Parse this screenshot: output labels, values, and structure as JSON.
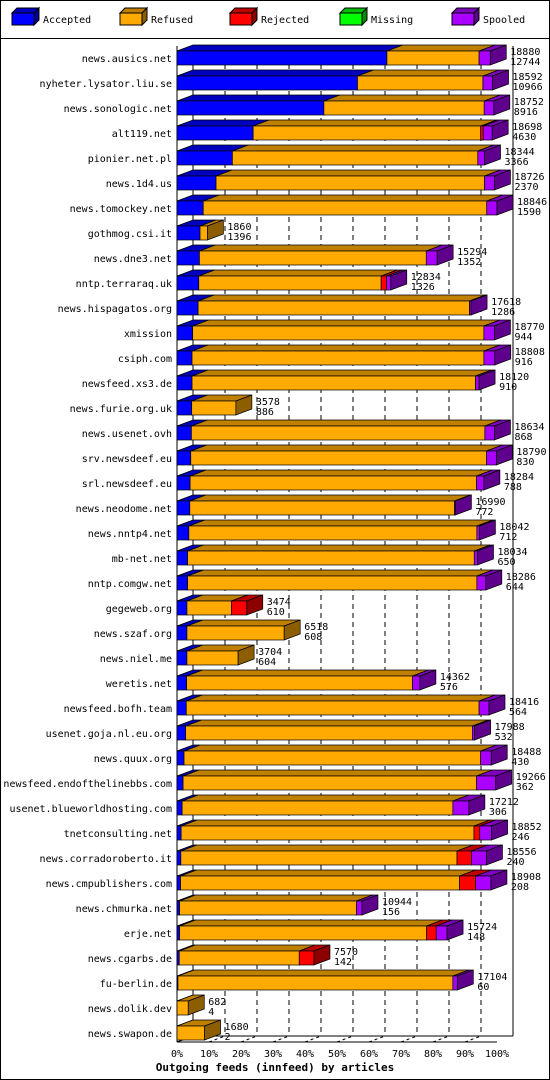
{
  "chart_data": {
    "type": "bar",
    "stacked": true,
    "orientation": "horizontal",
    "xlabel": "Outgoing feeds (innfeed) by articles",
    "xlim": [
      0,
      100
    ],
    "x_ticks": [
      "0%",
      "10%",
      "20%",
      "30%",
      "40%",
      "50%",
      "60%",
      "70%",
      "80%",
      "90%",
      "100%"
    ],
    "legend": [
      "Accepted",
      "Refused",
      "Rejected",
      "Missing",
      "Spooled"
    ],
    "legend_position": "top",
    "colors": {
      "Accepted": "#0000ff",
      "Refused": "#ffaa00",
      "Rejected": "#ff0000",
      "Missing": "#00ff00",
      "Spooled": "#aa00ff"
    },
    "categories": [
      "news.ausics.net",
      "nyheter.lysator.liu.se",
      "news.sonologic.net",
      "alt119.net",
      "pionier.net.pl",
      "news.1d4.us",
      "news.tomockey.net",
      "gothmog.csi.it",
      "news.dne3.net",
      "nntp.terraraq.uk",
      "news.hispagatos.org",
      "xmission",
      "csiph.com",
      "newsfeed.xs3.de",
      "news.furie.org.uk",
      "news.usenet.ovh",
      "srv.newsdeef.eu",
      "srl.newsdeef.eu",
      "news.neodome.net",
      "news.nntp4.net",
      "mb-net.net",
      "nntp.comgw.net",
      "gegeweb.org",
      "news.szaf.org",
      "news.niel.me",
      "weretis.net",
      "newsfeed.bofh.team",
      "usenet.goja.nl.eu.org",
      "news.quux.org",
      "newsfeed.endofthelinebbs.com",
      "usenet.blueworldhosting.com",
      "tnetconsulting.net",
      "news.corradoroberto.it",
      "news.cmpublishers.com",
      "news.chmurka.net",
      "erje.net",
      "news.cgarbs.de",
      "fu-berlin.de",
      "news.dolik.dev",
      "news.swapon.de"
    ],
    "offered": [
      18880,
      18592,
      18752,
      18698,
      18344,
      18726,
      18846,
      1860,
      15294,
      12834,
      17618,
      18770,
      18808,
      18120,
      3578,
      18634,
      18790,
      18284,
      16990,
      18042,
      18034,
      18286,
      3474,
      6518,
      3704,
      14362,
      18416,
      17988,
      18488,
      19266,
      17212,
      18852,
      18556,
      18908,
      10944,
      15724,
      7570,
      17104,
      682,
      1680
    ],
    "accepted": [
      12744,
      10966,
      8916,
      4630,
      3366,
      2370,
      1590,
      1396,
      1352,
      1326,
      1286,
      944,
      916,
      910,
      886,
      868,
      830,
      788,
      772,
      712,
      650,
      644,
      610,
      608,
      604,
      576,
      564,
      532,
      430,
      362,
      306,
      246,
      240,
      208,
      156,
      148,
      142,
      60,
      4,
      2
    ],
    "series": [
      {
        "name": "Accepted",
        "values": [
          65.6,
          56.4,
          45.9,
          23.8,
          17.3,
          12.2,
          8.2,
          7.2,
          7.0,
          6.8,
          6.6,
          4.9,
          4.7,
          4.7,
          4.6,
          4.5,
          4.3,
          4.1,
          4.0,
          3.7,
          3.3,
          3.3,
          3.1,
          3.1,
          3.1,
          3.0,
          2.9,
          2.7,
          2.2,
          1.9,
          1.6,
          1.3,
          1.2,
          1.1,
          0.8,
          0.8,
          0.7,
          0.3,
          0.02,
          0.01
        ]
      },
      {
        "name": "Refused",
        "values": [
          28.8,
          39.2,
          50.1,
          71.1,
          76.7,
          83.9,
          88.6,
          2.3,
          70.9,
          57.0,
          84.8,
          91.0,
          91.2,
          88.6,
          13.8,
          91.7,
          92.4,
          89.5,
          82.7,
          90.0,
          89.6,
          90.4,
          13.9,
          30.4,
          16.0,
          70.6,
          91.5,
          89.6,
          92.7,
          91.7,
          84.6,
          91.5,
          86.3,
          87.2,
          55.3,
          77.2,
          37.5,
          85.9,
          3.5,
          8.6
        ]
      },
      {
        "name": "Rejected",
        "values": [
          0,
          0,
          0,
          0.8,
          0,
          0,
          0,
          0,
          0,
          1.7,
          0,
          0,
          0,
          0,
          0,
          0,
          0,
          0,
          0,
          0,
          0,
          0,
          4.8,
          0,
          0,
          0,
          0,
          0,
          0,
          0,
          0,
          1.8,
          4.5,
          5.0,
          0,
          3.0,
          4.6,
          0,
          0,
          0
        ]
      },
      {
        "name": "Missing",
        "values": [
          0,
          0,
          0,
          0,
          0,
          0,
          0,
          0,
          0,
          0,
          0,
          0,
          0,
          0,
          0,
          0,
          0,
          0,
          0,
          0,
          0,
          0,
          0,
          0,
          0,
          0,
          0,
          0,
          0,
          0,
          0,
          0,
          0,
          0,
          0,
          0,
          0,
          0,
          0,
          0
        ]
      },
      {
        "name": "Spooled",
        "values": [
          3.5,
          3.0,
          3.0,
          2.8,
          2.1,
          3.1,
          3.2,
          0,
          3.4,
          1.3,
          0.5,
          3.3,
          3.4,
          1.1,
          0,
          3.0,
          3.1,
          2.3,
          0.3,
          0.8,
          1.0,
          2.8,
          0,
          0,
          0,
          2.3,
          3.1,
          0.7,
          3.3,
          6.0,
          5.0,
          3.7,
          4.7,
          4.8,
          1.7,
          3.4,
          0,
          1.4,
          0,
          0
        ]
      }
    ]
  }
}
